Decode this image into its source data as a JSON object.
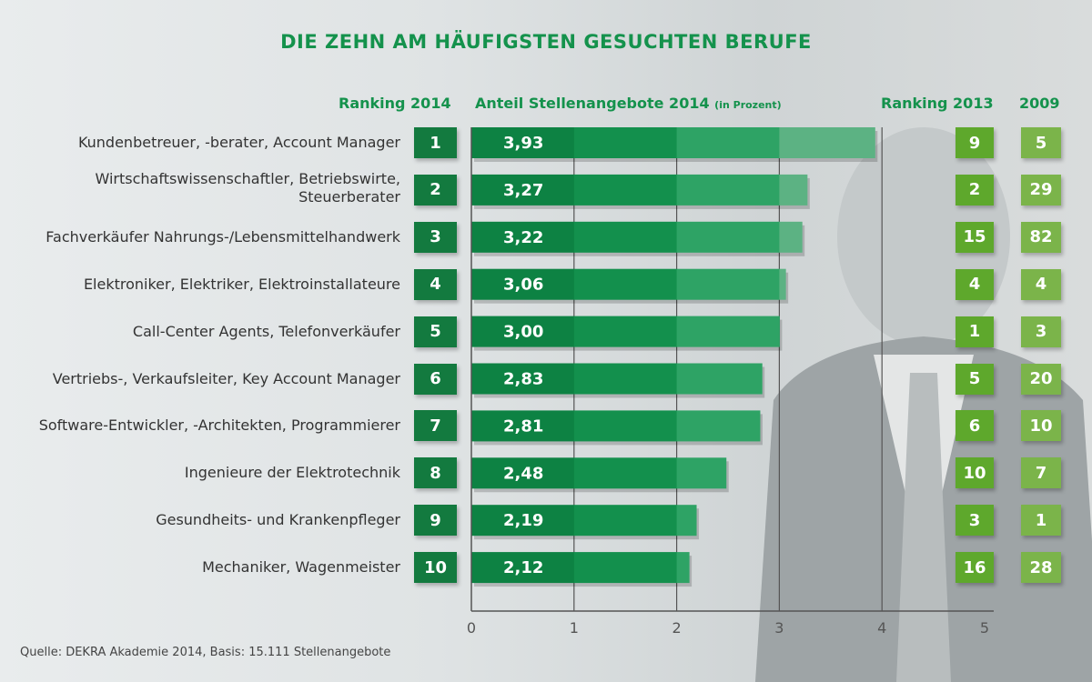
{
  "chart_data": {
    "type": "bar",
    "orientation": "horizontal",
    "title": "DIE ZEHN AM HÄUFIGSTEN GESUCHTEN BERUFE",
    "column_headers": {
      "rank_2014": "Ranking 2014",
      "share": "Anteil Stellenangebote 2014",
      "share_unit": "(in Prozent)",
      "rank_2013": "Ranking 2013",
      "rank_2009": "2009"
    },
    "categories": [
      "Kundenbetreuer, -berater, Account Manager",
      "Wirtschaftswissenschaftler, Betriebswirte,\nSteuerberater",
      "Fachverkäufer Nahrungs-/Lebensmittelhandwerk",
      "Elektroniker, Elektriker, Elektroinstallateure",
      "Call-Center Agents, Telefonverkäufer",
      "Vertriebs-, Verkaufsleiter, Key Account Manager",
      "Software-Entwickler, -Architekten, Programmierer",
      "Ingenieure der Elektrotechnik",
      "Gesundheits- und Krankenpfleger",
      "Mechaniker, Wagenmeister"
    ],
    "values": [
      3.93,
      3.27,
      3.22,
      3.06,
      3.0,
      2.83,
      2.81,
      2.48,
      2.19,
      2.12
    ],
    "value_labels": [
      "3,93",
      "3,27",
      "3,22",
      "3,06",
      "3,00",
      "2,83",
      "2,81",
      "2,48",
      "2,19",
      "2,12"
    ],
    "rank_2014": [
      "1",
      "2",
      "3",
      "4",
      "5",
      "6",
      "7",
      "8",
      "9",
      "10"
    ],
    "rank_2013": [
      "9",
      "2",
      "15",
      "4",
      "1",
      "5",
      "6",
      "10",
      "3",
      "16"
    ],
    "rank_2009": [
      "5",
      "29",
      "82",
      "4",
      "3",
      "20",
      "10",
      "7",
      "1",
      "28"
    ],
    "xlim": [
      0,
      5
    ],
    "xticks": [
      "0",
      "1",
      "2",
      "3",
      "4",
      "5"
    ],
    "grid": true,
    "colors": {
      "title": "#14924c",
      "bar": "#13904d",
      "rank_2014": "#137a3f",
      "rank_2013": "#5ea82c",
      "rank_2009": "#7bb44a"
    }
  },
  "source": "Quelle: DEKRA Akademie 2014, Basis: 15.111 Stellenangebote"
}
